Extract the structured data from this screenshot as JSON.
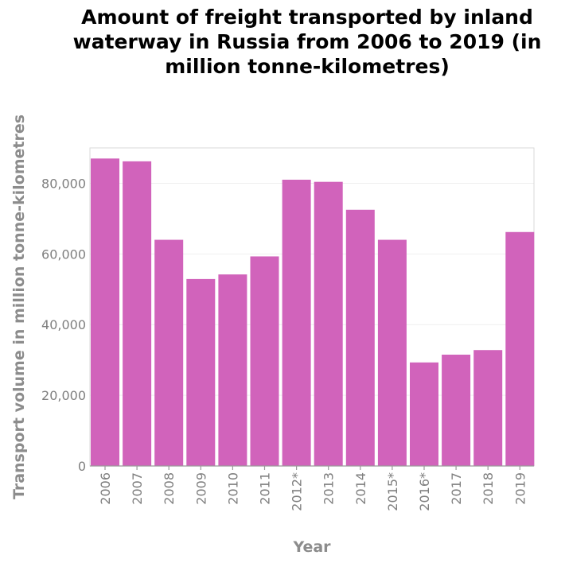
{
  "chart_data": {
    "type": "bar",
    "title_lines": [
      "Amount of freight transported by inland",
      "waterway in Russia from 2006 to 2019 (in",
      "million tonne-kilometres)"
    ],
    "xlabel": "Year",
    "ylabel": "Transport volume in million tonne-kilometres",
    "categories": [
      "2006",
      "2007",
      "2008",
      "2009",
      "2010",
      "2011",
      "2012*",
      "2013",
      "2014",
      "2015*",
      "2016*",
      "2017",
      "2018",
      "2019"
    ],
    "values": [
      87000,
      86200,
      64000,
      52900,
      54200,
      59300,
      81000,
      80400,
      72500,
      64000,
      29300,
      31500,
      32800,
      66200
    ],
    "yticks": [
      0,
      20000,
      40000,
      60000,
      80000
    ],
    "ytick_labels": [
      "0",
      "20,000",
      "40,000",
      "60,000",
      "80,000"
    ],
    "ylim": [
      0,
      90000
    ],
    "bar_color": "#d163bb",
    "grid": true
  }
}
